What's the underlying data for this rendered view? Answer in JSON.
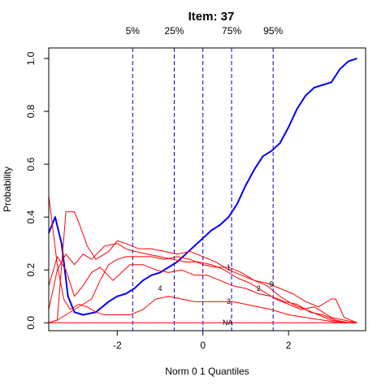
{
  "chart_data": {
    "type": "line",
    "title": "Item:  37",
    "xlabel": "Norm 0 1 Quantiles",
    "ylabel": "Probability",
    "xlim": [
      -3.6,
      3.8
    ],
    "ylim": [
      -0.03,
      1.04
    ],
    "xticks": [
      -2,
      0,
      2
    ],
    "xtick_labels": [
      "-2",
      "0",
      "2"
    ],
    "yticks": [
      0.0,
      0.2,
      0.4,
      0.6,
      0.8,
      1.0
    ],
    "ytick_labels": [
      "0.0",
      "0.2",
      "0.4",
      "0.6",
      "0.8",
      "1.0"
    ],
    "grid": false,
    "quantiles": [
      {
        "label": "5%",
        "x": -1.64
      },
      {
        "label": "25%",
        "x": -0.67
      },
      {
        "label": "",
        "x": 0.0
      },
      {
        "label": "75%",
        "x": 0.67
      },
      {
        "label": "95%",
        "x": 1.64
      }
    ],
    "colors": {
      "main": "#0000ff",
      "options": "#ff0000",
      "quantile_lines": "#0000cc"
    },
    "series": [
      {
        "label": "",
        "color": "#0000ff",
        "width": 2,
        "x": [
          -3.6,
          -3.45,
          -3.3,
          -3.15,
          -3.0,
          -2.8,
          -2.5,
          -2.2,
          -2.0,
          -1.8,
          -1.6,
          -1.4,
          -1.2,
          -1.0,
          -0.8,
          -0.6,
          -0.4,
          -0.2,
          0.0,
          0.2,
          0.4,
          0.6,
          0.8,
          1.0,
          1.2,
          1.4,
          1.6,
          1.8,
          2.0,
          2.2,
          2.4,
          2.6,
          2.8,
          3.0,
          3.2,
          3.4,
          3.6
        ],
        "y": [
          0.34,
          0.4,
          0.3,
          0.1,
          0.04,
          0.03,
          0.04,
          0.08,
          0.1,
          0.11,
          0.13,
          0.16,
          0.18,
          0.19,
          0.21,
          0.23,
          0.26,
          0.29,
          0.32,
          0.35,
          0.37,
          0.4,
          0.45,
          0.52,
          0.58,
          0.63,
          0.65,
          0.68,
          0.74,
          0.81,
          0.86,
          0.89,
          0.9,
          0.91,
          0.96,
          0.99,
          1.0
        ]
      },
      {
        "label": "1",
        "label_x": 0.6,
        "label_y": 0.21,
        "color": "#ff0000",
        "width": 1,
        "x": [
          -3.6,
          -3.4,
          -3.2,
          -3.0,
          -2.8,
          -2.6,
          -2.4,
          -2.2,
          -2.0,
          -1.8,
          -1.5,
          -1.2,
          -0.9,
          -0.6,
          -0.3,
          0.0,
          0.3,
          0.6,
          0.9,
          1.2,
          1.5,
          1.8,
          2.1,
          2.4,
          2.7,
          3.0,
          3.3,
          3.6
        ],
        "y": [
          0.0,
          0.01,
          0.03,
          0.05,
          0.07,
          0.09,
          0.16,
          0.22,
          0.24,
          0.25,
          0.25,
          0.25,
          0.24,
          0.25,
          0.24,
          0.22,
          0.21,
          0.21,
          0.19,
          0.16,
          0.14,
          0.1,
          0.07,
          0.05,
          0.03,
          0.01,
          0.0,
          0.0
        ]
      },
      {
        "label": "2",
        "label_x": 1.3,
        "label_y": 0.13,
        "color": "#ff0000",
        "width": 1,
        "x": [
          -3.6,
          -3.4,
          -3.2,
          -3.0,
          -2.8,
          -2.6,
          -2.4,
          -2.1,
          -1.9,
          -1.7,
          -1.4,
          -1.1,
          -0.8,
          -0.5,
          -0.2,
          0.1,
          0.4,
          0.7,
          1.0,
          1.3,
          1.6,
          1.9,
          2.2,
          2.5,
          2.8,
          3.1,
          3.4,
          3.6
        ],
        "y": [
          0.14,
          0.25,
          0.2,
          0.1,
          0.14,
          0.19,
          0.21,
          0.16,
          0.19,
          0.22,
          0.22,
          0.2,
          0.19,
          0.2,
          0.18,
          0.18,
          0.16,
          0.14,
          0.13,
          0.11,
          0.1,
          0.08,
          0.07,
          0.04,
          0.03,
          0.01,
          0.0,
          0.0
        ]
      },
      {
        "label": "3",
        "label_x": 0.6,
        "label_y": 0.08,
        "color": "#ff0000",
        "width": 1,
        "x": [
          -3.6,
          -3.4,
          -3.25,
          -3.1,
          -2.9,
          -2.7,
          -2.5,
          -2.3,
          -2.0,
          -1.7,
          -1.4,
          -1.1,
          -0.8,
          -0.5,
          -0.2,
          0.1,
          0.4,
          0.7,
          1.0,
          1.3,
          1.6,
          2.0,
          2.4,
          2.8,
          3.2,
          3.6
        ],
        "y": [
          0.48,
          0.22,
          0.09,
          0.05,
          0.07,
          0.06,
          0.04,
          0.03,
          0.03,
          0.03,
          0.05,
          0.09,
          0.1,
          0.09,
          0.08,
          0.08,
          0.08,
          0.08,
          0.07,
          0.06,
          0.05,
          0.03,
          0.02,
          0.01,
          0.0,
          0.0
        ]
      },
      {
        "label": "4",
        "label_x": -1.0,
        "label_y": 0.13,
        "color": "#ff0000",
        "width": 1,
        "x": [
          -3.6,
          -3.4,
          -3.2,
          -3.0,
          -2.8,
          -2.6,
          -2.3,
          -2.0,
          -1.8,
          -1.6,
          -1.3,
          -1.0,
          -0.7,
          -0.4,
          -0.1,
          0.2,
          0.5,
          0.8,
          1.1,
          1.4,
          1.7,
          2.0,
          2.3,
          2.6,
          2.8,
          3.0,
          3.3,
          3.6
        ],
        "y": [
          0.05,
          0.2,
          0.26,
          0.22,
          0.26,
          0.24,
          0.29,
          0.3,
          0.28,
          0.27,
          0.26,
          0.25,
          0.24,
          0.23,
          0.23,
          0.22,
          0.2,
          0.17,
          0.15,
          0.12,
          0.09,
          0.07,
          0.05,
          0.06,
          0.04,
          0.02,
          0.01,
          0.0
        ]
      },
      {
        "label": "5",
        "label_x": 1.6,
        "label_y": 0.145,
        "color": "#ff0000",
        "width": 1,
        "x": [
          -3.6,
          -3.4,
          -3.2,
          -3.0,
          -2.9,
          -2.7,
          -2.5,
          -2.2,
          -2.0,
          -1.8,
          -1.5,
          -1.2,
          -0.9,
          -0.6,
          -0.3,
          0.0,
          0.3,
          0.6,
          0.9,
          1.2,
          1.5,
          1.8,
          2.1,
          2.4,
          2.7,
          3.0,
          3.1,
          3.3,
          3.6
        ],
        "y": [
          0.0,
          0.01,
          0.42,
          0.42,
          0.38,
          0.29,
          0.24,
          0.27,
          0.31,
          0.3,
          0.28,
          0.28,
          0.27,
          0.26,
          0.27,
          0.25,
          0.23,
          0.2,
          0.18,
          0.16,
          0.15,
          0.13,
          0.11,
          0.08,
          0.06,
          0.09,
          0.09,
          0.02,
          0.0
        ]
      },
      {
        "label": "NA",
        "label_x": 0.58,
        "label_y": 0.0,
        "color": "#ff0000",
        "width": 1,
        "x": [
          -3.6,
          3.6
        ],
        "y": [
          0.0,
          0.0
        ]
      }
    ]
  }
}
